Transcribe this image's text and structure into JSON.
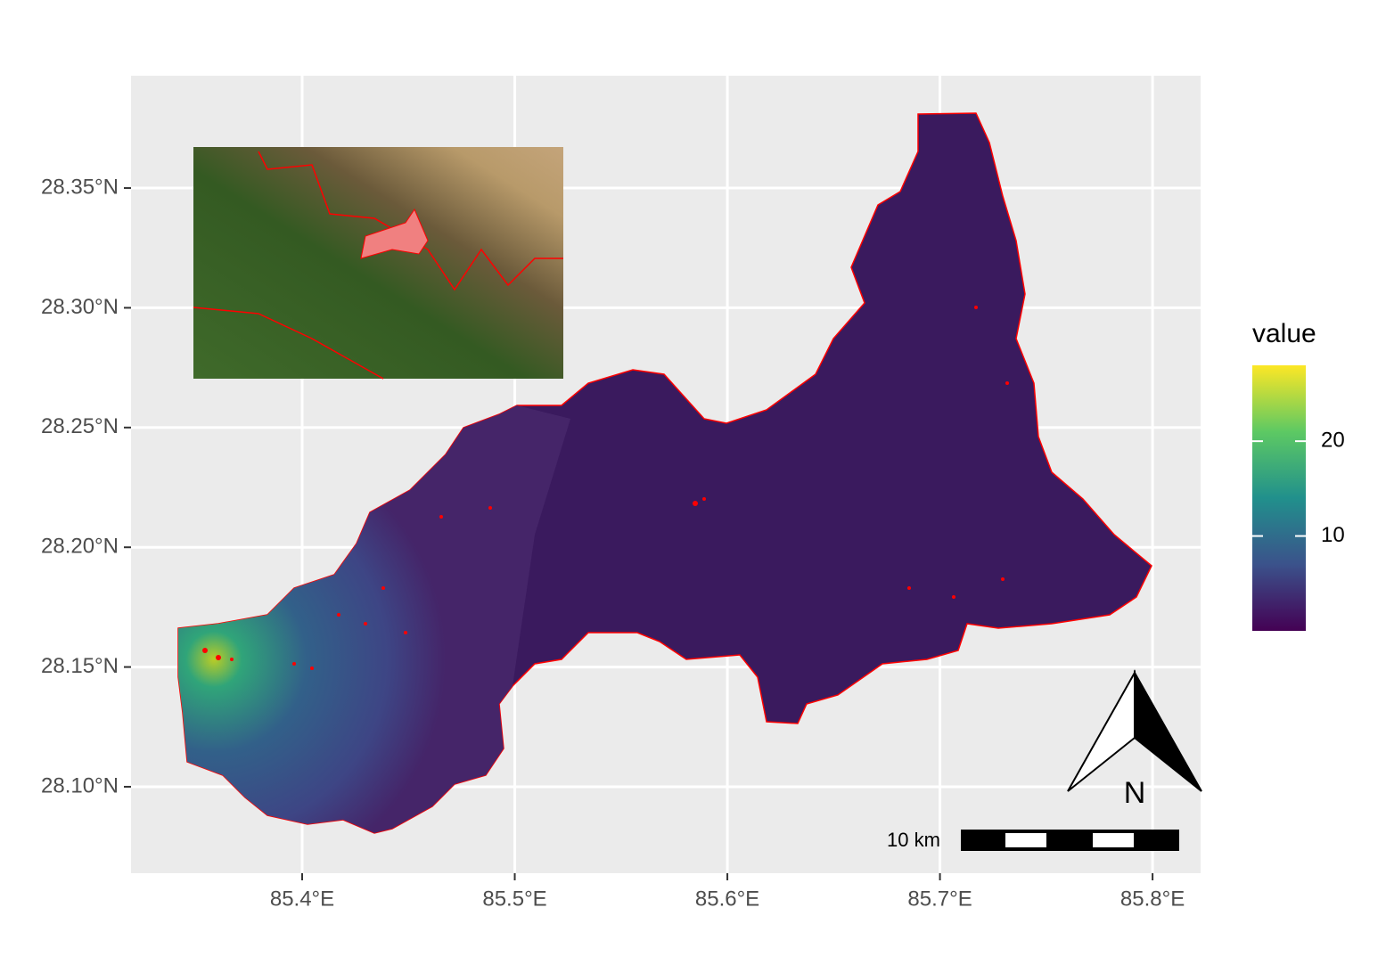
{
  "map": {
    "type": "map",
    "xlim": [
      85.3195,
      85.8226
    ],
    "ylim": [
      28.0639,
      28.3969
    ],
    "xticks": [
      {
        "value": 85.4,
        "label": "85.4°E"
      },
      {
        "value": 85.5,
        "label": "85.5°E"
      },
      {
        "value": 85.6,
        "label": "85.6°E"
      },
      {
        "value": 85.7,
        "label": "85.7°E"
      },
      {
        "value": 85.8,
        "label": "85.8°E"
      }
    ],
    "yticks": [
      {
        "value": 28.1,
        "label": "28.10°N"
      },
      {
        "value": 28.15,
        "label": "28.15°N"
      },
      {
        "value": 28.2,
        "label": "28.20°N"
      },
      {
        "value": 28.25,
        "label": "28.25°N"
      },
      {
        "value": 28.3,
        "label": "28.30°N"
      },
      {
        "value": 28.35,
        "label": "28.35°N"
      }
    ],
    "grid": true,
    "legend": {
      "title": "value",
      "lim": [
        0,
        28
      ],
      "ticks": [
        10,
        20
      ]
    },
    "scale_bar": {
      "label": "10 km"
    },
    "north_arrow": {
      "label": "N"
    }
  }
}
